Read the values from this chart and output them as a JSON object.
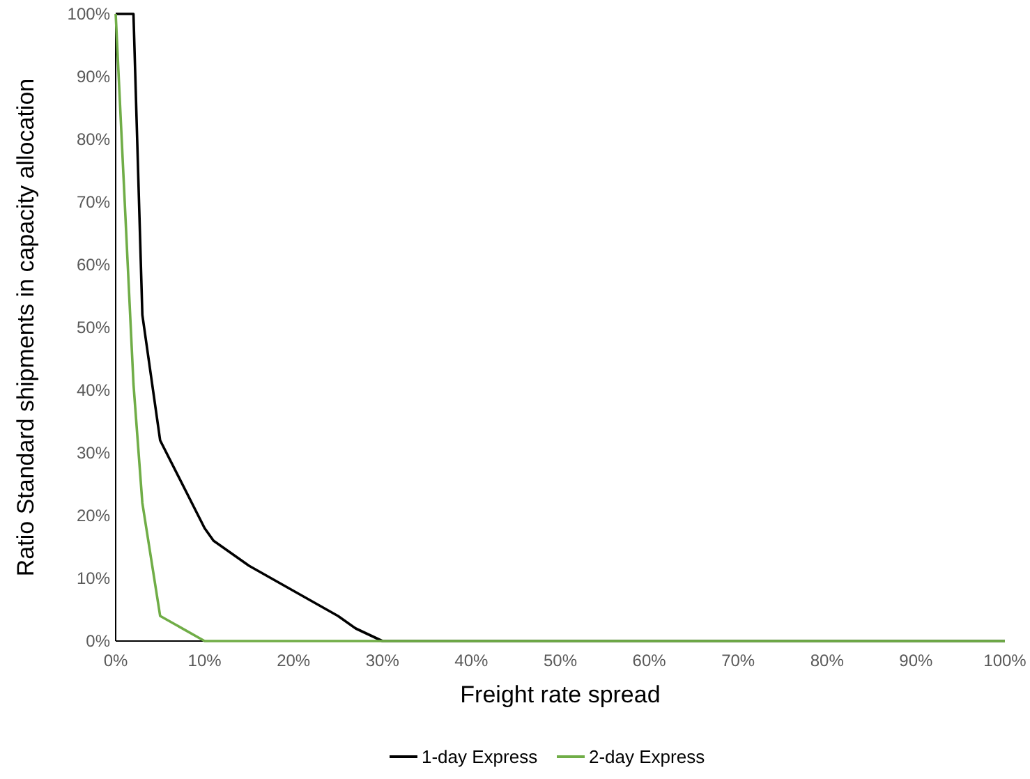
{
  "chart_data": {
    "type": "line",
    "xlabel": "Freight rate spread",
    "ylabel": "Ratio Standard shipments in capacity allocation",
    "xlim": [
      0,
      100
    ],
    "ylim": [
      0,
      100
    ],
    "xticks": [
      {
        "value": 0,
        "label": "0%"
      },
      {
        "value": 10,
        "label": "10%"
      },
      {
        "value": 20,
        "label": "20%"
      },
      {
        "value": 30,
        "label": "30%"
      },
      {
        "value": 40,
        "label": "40%"
      },
      {
        "value": 50,
        "label": "50%"
      },
      {
        "value": 60,
        "label": "60%"
      },
      {
        "value": 70,
        "label": "70%"
      },
      {
        "value": 80,
        "label": "80%"
      },
      {
        "value": 90,
        "label": "90%"
      },
      {
        "value": 100,
        "label": "100%"
      }
    ],
    "yticks": [
      {
        "value": 0,
        "label": "0%"
      },
      {
        "value": 10,
        "label": "10%"
      },
      {
        "value": 20,
        "label": "20%"
      },
      {
        "value": 30,
        "label": "30%"
      },
      {
        "value": 40,
        "label": "40%"
      },
      {
        "value": 50,
        "label": "50%"
      },
      {
        "value": 60,
        "label": "60%"
      },
      {
        "value": 70,
        "label": "70%"
      },
      {
        "value": 80,
        "label": "80%"
      },
      {
        "value": 90,
        "label": "90%"
      },
      {
        "value": 100,
        "label": "100%"
      }
    ],
    "legend": "bottom",
    "marker": "none",
    "line_style": "solid",
    "series": [
      {
        "name": "1-day Express",
        "color": "#000000",
        "x": [
          0,
          2,
          3,
          5,
          10,
          11,
          15,
          25,
          27,
          30,
          100
        ],
        "values": [
          100,
          100,
          52,
          32,
          18,
          16,
          12,
          4,
          2,
          0,
          0
        ]
      },
      {
        "name": "2-day Express",
        "color": "#70ad47",
        "x": [
          0,
          2,
          3,
          5,
          10,
          100
        ],
        "values": [
          100,
          41,
          22,
          4,
          0,
          0
        ]
      }
    ]
  }
}
